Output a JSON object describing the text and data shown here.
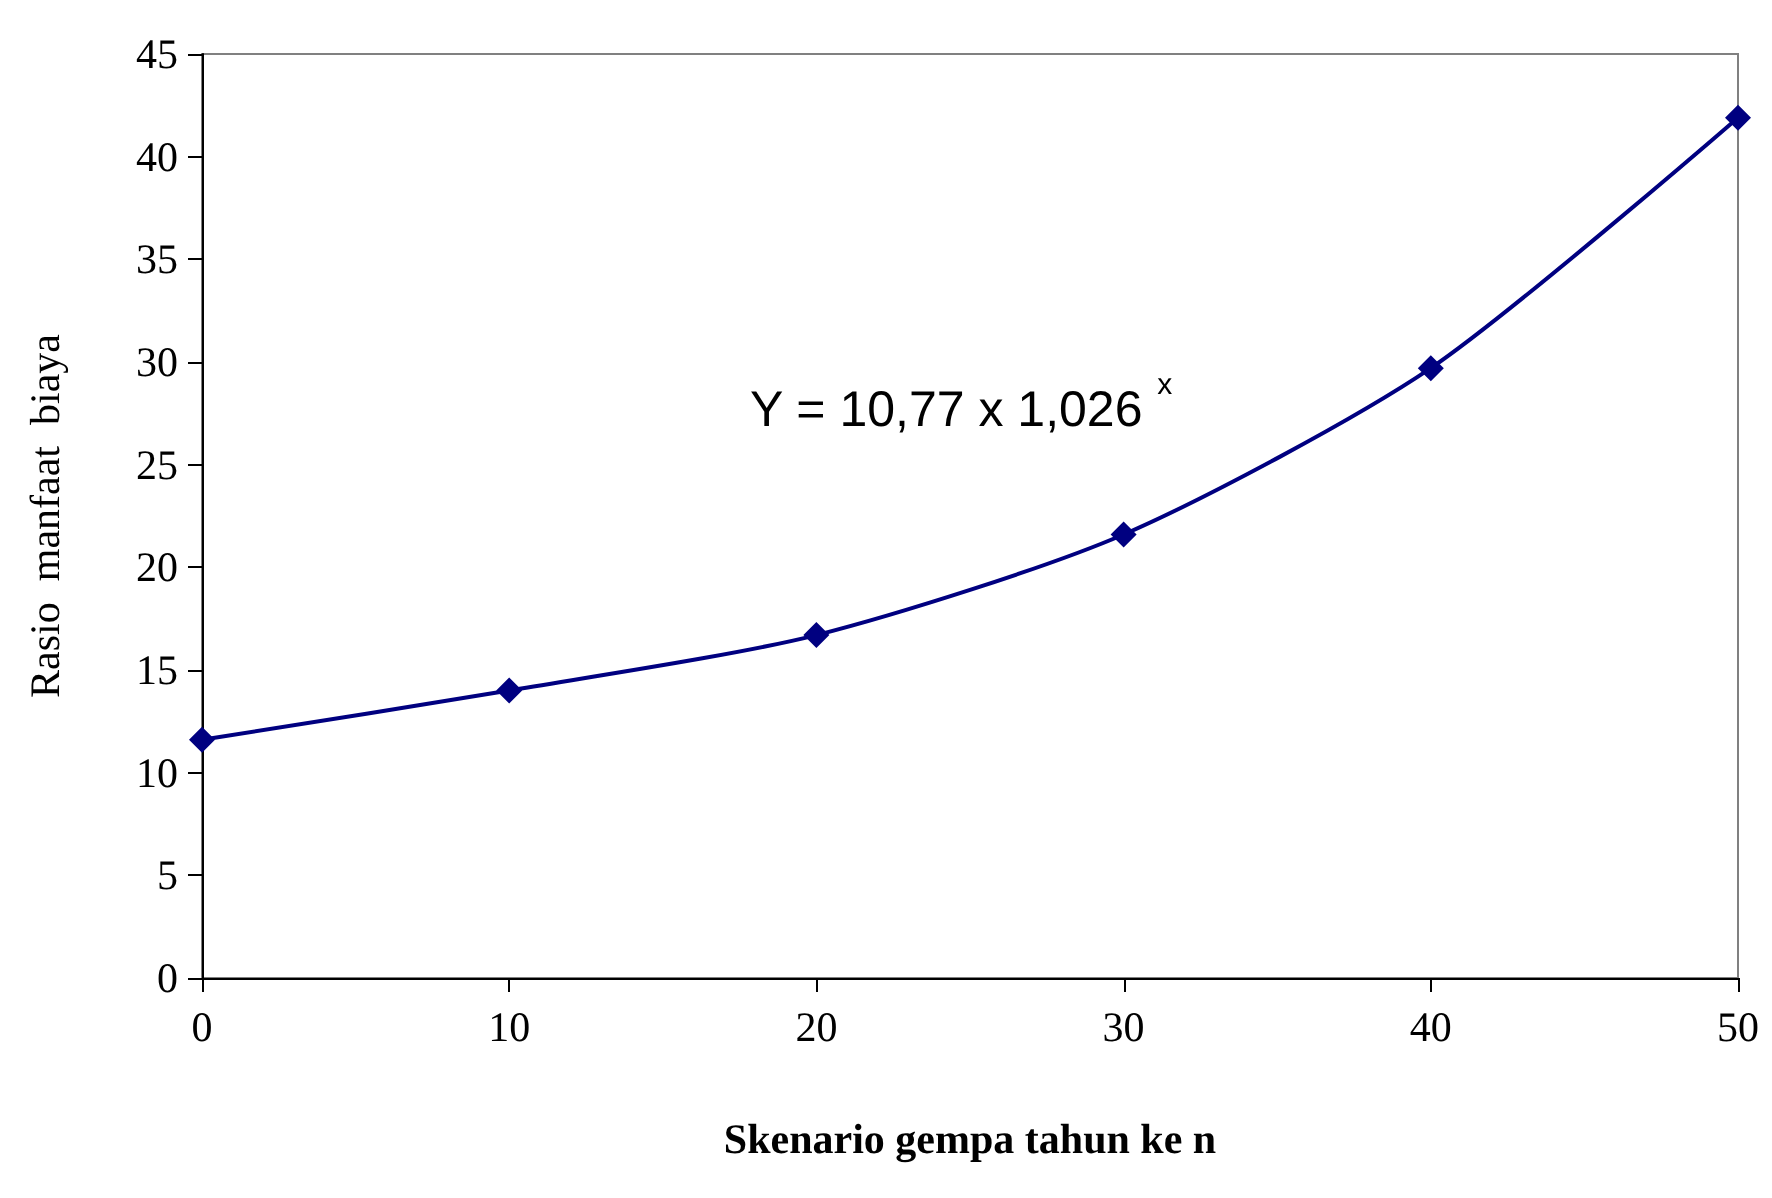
{
  "chart_data": {
    "type": "line",
    "xlabel": "Skenario gempa tahun ke n",
    "ylabel": "Rasio  manfaat  biaya",
    "x": [
      0,
      10,
      20,
      30,
      40,
      50
    ],
    "series": [
      {
        "color": "#000080",
        "values": [
          11.6,
          14.0,
          16.7,
          21.6,
          29.7,
          41.9
        ]
      }
    ],
    "xlim": [
      0,
      50
    ],
    "xticks": [
      0,
      10,
      20,
      30,
      40,
      50
    ],
    "ylim": [
      0,
      45
    ],
    "yticks": [
      0,
      5,
      10,
      15,
      20,
      25,
      30,
      35,
      40,
      45
    ],
    "annotations": [
      "Y = 10,77 x 1,026 $^{x}$"
    ],
    "marker": "diamond",
    "grid": false
  }
}
